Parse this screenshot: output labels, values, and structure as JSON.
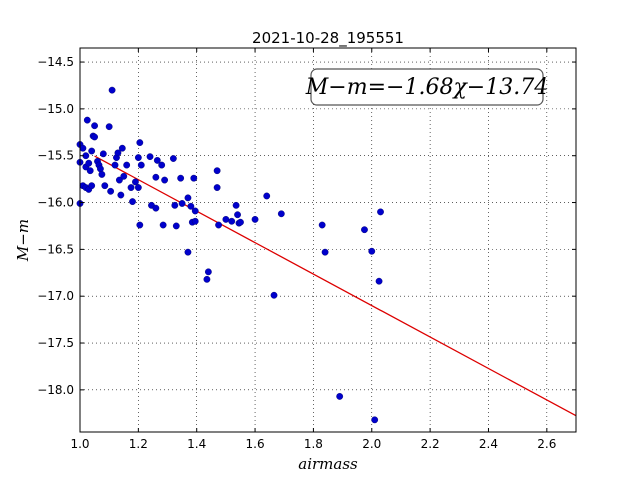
{
  "chart_data": {
    "type": "scatter",
    "title": "2021-10-28_195551",
    "xlabel": "airmass",
    "ylabel": "M−m",
    "xlim": [
      1.0,
      2.7
    ],
    "ylim": [
      -18.45,
      -14.35
    ],
    "y_inverted": true,
    "grid": true,
    "x_ticks": [
      1.0,
      1.2,
      1.4,
      1.6,
      1.8,
      2.0,
      2.2,
      2.4,
      2.6
    ],
    "x_tick_labels": [
      "1.0",
      "1.2",
      "1.4",
      "1.6",
      "1.8",
      "2.0",
      "2.2",
      "2.4",
      "2.6"
    ],
    "y_ticks": [
      -14.5,
      -15.0,
      -15.5,
      -16.0,
      -16.5,
      -17.0,
      -17.5,
      -18.0
    ],
    "y_tick_labels": [
      "−14.5",
      "−15.0",
      "−15.5",
      "−16.0",
      "−16.5",
      "−17.0",
      "−17.5",
      "−18.0"
    ],
    "annotation": "M−m=−1.68χ−13.74",
    "fit": {
      "slope": -1.68,
      "intercept": -13.74,
      "x_range": [
        1.05,
        2.7
      ],
      "color": "#dd0000"
    },
    "point_color": "#0000cc",
    "series": [
      {
        "points": [
          [
            1.0,
            -16.01
          ],
          [
            1.0,
            -15.57
          ],
          [
            1.0,
            -15.38
          ],
          [
            1.01,
            -15.82
          ],
          [
            1.01,
            -15.42
          ],
          [
            1.02,
            -15.5
          ],
          [
            1.02,
            -15.62
          ],
          [
            1.02,
            -15.84
          ],
          [
            1.025,
            -15.12
          ],
          [
            1.03,
            -15.58
          ],
          [
            1.03,
            -15.86
          ],
          [
            1.035,
            -15.66
          ],
          [
            1.04,
            -15.82
          ],
          [
            1.04,
            -15.45
          ],
          [
            1.045,
            -15.29
          ],
          [
            1.05,
            -15.18
          ],
          [
            1.05,
            -15.3
          ],
          [
            1.06,
            -15.56
          ],
          [
            1.065,
            -15.6
          ],
          [
            1.07,
            -15.64
          ],
          [
            1.075,
            -15.7
          ],
          [
            1.08,
            -15.48
          ],
          [
            1.085,
            -15.82
          ],
          [
            1.1,
            -15.19
          ],
          [
            1.105,
            -15.88
          ],
          [
            1.11,
            -14.8
          ],
          [
            1.12,
            -15.6
          ],
          [
            1.125,
            -15.52
          ],
          [
            1.13,
            -15.47
          ],
          [
            1.135,
            -15.76
          ],
          [
            1.14,
            -15.92
          ],
          [
            1.145,
            -15.42
          ],
          [
            1.15,
            -15.72
          ],
          [
            1.16,
            -15.6
          ],
          [
            1.175,
            -15.84
          ],
          [
            1.18,
            -15.99
          ],
          [
            1.19,
            -15.78
          ],
          [
            1.2,
            -15.84
          ],
          [
            1.205,
            -16.24
          ],
          [
            1.2,
            -15.52
          ],
          [
            1.205,
            -15.36
          ],
          [
            1.21,
            -15.6
          ],
          [
            1.24,
            -15.51
          ],
          [
            1.245,
            -16.03
          ],
          [
            1.26,
            -16.06
          ],
          [
            1.265,
            -15.55
          ],
          [
            1.26,
            -15.73
          ],
          [
            1.28,
            -15.6
          ],
          [
            1.285,
            -16.24
          ],
          [
            1.29,
            -15.76
          ],
          [
            1.32,
            -15.53
          ],
          [
            1.325,
            -16.03
          ],
          [
            1.33,
            -16.25
          ],
          [
            1.345,
            -15.74
          ],
          [
            1.35,
            -16.01
          ],
          [
            1.37,
            -16.53
          ],
          [
            1.37,
            -15.95
          ],
          [
            1.38,
            -16.04
          ],
          [
            1.385,
            -16.21
          ],
          [
            1.39,
            -15.74
          ],
          [
            1.395,
            -16.09
          ],
          [
            1.395,
            -16.2
          ],
          [
            1.435,
            -16.82
          ],
          [
            1.44,
            -16.74
          ],
          [
            1.47,
            -15.84
          ],
          [
            1.47,
            -15.66
          ],
          [
            1.475,
            -16.24
          ],
          [
            1.5,
            -16.18
          ],
          [
            1.52,
            -16.2
          ],
          [
            1.535,
            -16.03
          ],
          [
            1.54,
            -16.13
          ],
          [
            1.545,
            -16.22
          ],
          [
            1.55,
            -16.21
          ],
          [
            1.6,
            -16.18
          ],
          [
            1.64,
            -15.93
          ],
          [
            1.665,
            -16.99
          ],
          [
            1.69,
            -16.12
          ],
          [
            1.83,
            -16.24
          ],
          [
            1.84,
            -16.53
          ],
          [
            1.89,
            -18.07
          ],
          [
            1.975,
            -16.29
          ],
          [
            2.0,
            -16.52
          ],
          [
            2.01,
            -18.32
          ],
          [
            2.025,
            -16.84
          ],
          [
            2.03,
            -16.1
          ]
        ]
      }
    ]
  }
}
